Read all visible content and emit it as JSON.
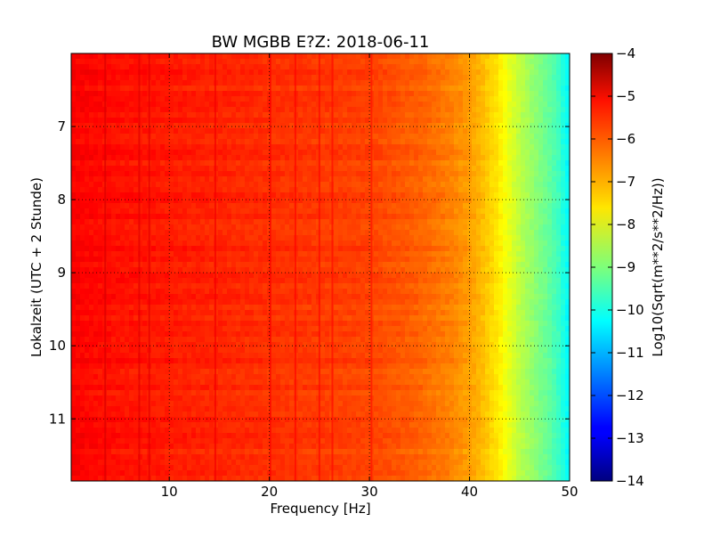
{
  "chart_data": {
    "type": "heatmap",
    "title": "BW MGBB E?Z: 2018-06-11",
    "xlabel": "Frequency [Hz]",
    "ylabel": "Lokalzeit (UTC + 2 Stunde)",
    "xlim": [
      0.2,
      50
    ],
    "ylim": [
      11.85,
      6.0
    ],
    "y_inverted": true,
    "xticks": [
      10,
      20,
      30,
      40,
      50
    ],
    "yticks": [
      7,
      8,
      9,
      10,
      11
    ],
    "grid": true,
    "colormap": "jet",
    "colorbar": {
      "label": "Log10(Sqrt(m**2/s**2/Hz))",
      "range": [
        -14,
        -4
      ],
      "ticks": [
        -4,
        -5,
        -6,
        -7,
        -8,
        -9,
        -10,
        -11,
        -12,
        -13,
        -14
      ]
    },
    "mean_level_profile": {
      "frequency_hz": [
        0.2,
        2,
        5,
        10,
        15,
        20,
        25,
        30,
        35,
        38,
        40,
        41,
        42,
        43,
        44,
        45,
        46,
        47,
        48,
        49,
        49.7
      ],
      "log10_level": [
        -5.2,
        -5.3,
        -5.4,
        -5.5,
        -5.6,
        -5.7,
        -5.8,
        -5.9,
        -6.2,
        -6.5,
        -6.8,
        -7.0,
        -7.3,
        -7.6,
        -8.0,
        -8.4,
        -8.7,
        -9.0,
        -9.3,
        -9.7,
        -10.2
      ]
    },
    "line_features_hz": [
      3.6,
      7.0,
      8.0,
      14.6,
      20.1,
      22.6,
      25.0,
      26.3,
      30.2
    ]
  }
}
